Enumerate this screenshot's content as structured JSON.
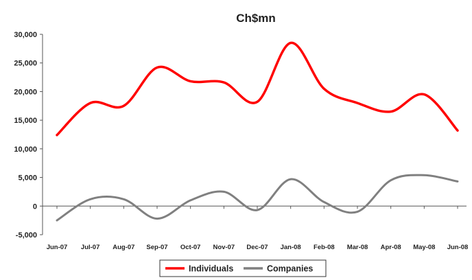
{
  "chart_data": {
    "type": "line",
    "title": "Ch$mn",
    "xlabel": "",
    "ylabel": "",
    "ylim": [
      -5000,
      30000
    ],
    "yticks": [
      -5000,
      0,
      5000,
      10000,
      15000,
      20000,
      25000,
      30000
    ],
    "ytick_labels": [
      "-5,000",
      "0",
      "5,000",
      "10,000",
      "15,000",
      "20,000",
      "25,000",
      "30,000"
    ],
    "categories": [
      "Jun-07",
      "Jul-07",
      "Aug-07",
      "Sep-07",
      "Oct-07",
      "Nov-07",
      "Dec-07",
      "Jan-08",
      "Feb-08",
      "Mar-08",
      "Apr-08",
      "May-08",
      "Jun-08"
    ],
    "series": [
      {
        "name": "Individuals",
        "color": "#ff0000",
        "values": [
          12400,
          18000,
          17500,
          24200,
          21800,
          21600,
          18200,
          28500,
          20500,
          18000,
          16500,
          19500,
          13200
        ]
      },
      {
        "name": "Companies",
        "color": "#808080",
        "values": [
          -2500,
          1200,
          1200,
          -2200,
          1000,
          2500,
          -700,
          4700,
          700,
          -1000,
          4500,
          5400,
          4300
        ]
      }
    ],
    "grid": false,
    "legend_position": "bottom"
  }
}
